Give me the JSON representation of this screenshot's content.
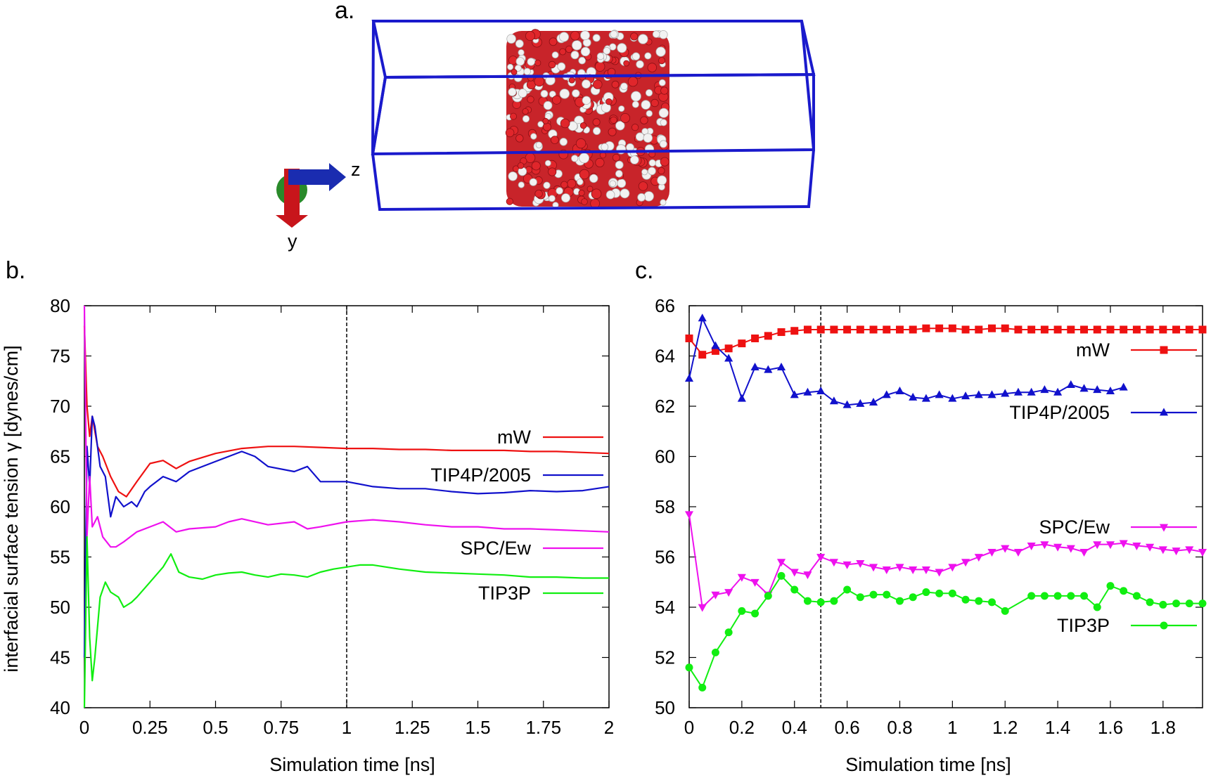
{
  "panels": {
    "a": {
      "label": "a.",
      "axis_z": "z",
      "axis_y": "y",
      "box_color": "#1a1acc"
    },
    "b": {
      "label": "b."
    },
    "c": {
      "label": "c."
    }
  },
  "chart_data": [
    {
      "id": "b",
      "type": "line",
      "xlabel": "Simulation time [ns]",
      "ylabel": "interfacial surface tension γ [dynes/cm]",
      "xlim": [
        0,
        2
      ],
      "ylim": [
        40,
        80
      ],
      "xticks": [
        0,
        0.25,
        0.5,
        0.75,
        1,
        1.25,
        1.5,
        1.75,
        2
      ],
      "xtick_labels": [
        "0",
        "0.25",
        "0.5",
        "0.75",
        "1",
        "1.25",
        "1.5",
        "1.75",
        "2"
      ],
      "yticks": [
        40,
        45,
        50,
        55,
        60,
        65,
        70,
        75,
        80
      ],
      "ytick_labels": [
        "40",
        "45",
        "50",
        "55",
        "60",
        "65",
        "70",
        "75",
        "80"
      ],
      "vline_x": 1,
      "grid": false,
      "legend": "right",
      "series": [
        {
          "name": "mW",
          "color": "#ee1111",
          "x": [
            0,
            0.01,
            0.02,
            0.03,
            0.05,
            0.07,
            0.1,
            0.13,
            0.16,
            0.2,
            0.25,
            0.3,
            0.35,
            0.4,
            0.5,
            0.6,
            0.7,
            0.8,
            0.9,
            1.0,
            1.1,
            1.2,
            1.3,
            1.4,
            1.5,
            1.6,
            1.7,
            1.8,
            1.9,
            2.0
          ],
          "y": [
            78,
            70,
            67,
            69,
            66,
            65,
            63,
            61.5,
            61,
            62.5,
            64.3,
            64.6,
            63.8,
            64.5,
            65.3,
            65.8,
            66.0,
            66.0,
            65.9,
            65.8,
            65.8,
            65.7,
            65.7,
            65.6,
            65.6,
            65.6,
            65.5,
            65.5,
            65.4,
            65.3
          ]
        },
        {
          "name": "TIP4P/2005",
          "color": "#1111cc",
          "x": [
            0,
            0.01,
            0.02,
            0.03,
            0.04,
            0.06,
            0.08,
            0.1,
            0.12,
            0.15,
            0.18,
            0.2,
            0.23,
            0.25,
            0.3,
            0.35,
            0.4,
            0.5,
            0.6,
            0.65,
            0.7,
            0.8,
            0.85,
            0.9,
            0.95,
            1.0,
            1.1,
            1.2,
            1.3,
            1.4,
            1.5,
            1.6,
            1.7,
            1.8,
            1.9,
            2.0
          ],
          "y": [
            45,
            66,
            62,
            69,
            68,
            64,
            63,
            59,
            61,
            60,
            60.5,
            60,
            61.5,
            62,
            63,
            62.5,
            63.5,
            64.5,
            65.5,
            65,
            64,
            63.5,
            64,
            62.5,
            62.5,
            62.5,
            62.0,
            61.8,
            61.8,
            61.5,
            61.3,
            61.4,
            61.6,
            61.5,
            61.6,
            62.0
          ]
        },
        {
          "name": "SPC/Ew",
          "color": "#ee11ee",
          "x": [
            0,
            0.01,
            0.02,
            0.03,
            0.05,
            0.07,
            0.1,
            0.12,
            0.15,
            0.2,
            0.25,
            0.3,
            0.35,
            0.4,
            0.5,
            0.55,
            0.6,
            0.7,
            0.8,
            0.85,
            0.9,
            1.0,
            1.1,
            1.2,
            1.3,
            1.4,
            1.5,
            1.6,
            1.7,
            1.8,
            1.9,
            2.0
          ],
          "y": [
            80,
            57,
            63,
            58,
            59,
            57,
            56,
            56,
            56.5,
            57.5,
            58,
            58.5,
            57.5,
            57.8,
            58,
            58.5,
            58.8,
            58.2,
            58.5,
            57.8,
            58,
            58.5,
            58.7,
            58.5,
            58.2,
            58.0,
            58.0,
            57.8,
            57.8,
            57.7,
            57.6,
            57.5
          ]
        },
        {
          "name": "TIP3P",
          "color": "#11ee11",
          "x": [
            0,
            0.01,
            0.02,
            0.03,
            0.04,
            0.06,
            0.08,
            0.1,
            0.13,
            0.15,
            0.18,
            0.2,
            0.25,
            0.3,
            0.33,
            0.36,
            0.4,
            0.45,
            0.5,
            0.55,
            0.6,
            0.65,
            0.7,
            0.75,
            0.8,
            0.85,
            0.9,
            0.95,
            1.0,
            1.05,
            1.1,
            1.2,
            1.3,
            1.4,
            1.5,
            1.6,
            1.7,
            1.8,
            1.9,
            2.0
          ],
          "y": [
            40,
            57,
            47,
            42.7,
            45,
            51,
            52.5,
            51.5,
            51,
            50,
            50.5,
            51,
            52.5,
            54,
            55.3,
            53.5,
            53.0,
            52.8,
            53.2,
            53.4,
            53.5,
            53.2,
            53.0,
            53.3,
            53.2,
            53.0,
            53.5,
            53.8,
            54.0,
            54.2,
            54.2,
            53.8,
            53.5,
            53.4,
            53.3,
            53.2,
            53.0,
            53.0,
            52.9,
            52.9
          ]
        }
      ]
    },
    {
      "id": "c",
      "type": "line",
      "xlabel": "Simulation time [ns]",
      "ylabel": "",
      "xlim": [
        0,
        1.95
      ],
      "ylim": [
        50,
        66
      ],
      "xticks": [
        0,
        0.2,
        0.4,
        0.6,
        0.8,
        1,
        1.2,
        1.4,
        1.6,
        1.8
      ],
      "xtick_labels": [
        "0",
        "0.2",
        "0.4",
        "0.6",
        "0.8",
        "1",
        "1.2",
        "1.4",
        "1.6",
        "1.8"
      ],
      "yticks": [
        50,
        52,
        54,
        56,
        58,
        60,
        62,
        64,
        66
      ],
      "ytick_labels": [
        "50",
        "52",
        "54",
        "56",
        "58",
        "60",
        "62",
        "64",
        "66"
      ],
      "vline_x": 0.5,
      "grid": false,
      "legend": "right",
      "series": [
        {
          "name": "mW",
          "color": "#ee1111",
          "marker": "square",
          "x": [
            0,
            0.05,
            0.1,
            0.15,
            0.2,
            0.25,
            0.3,
            0.35,
            0.4,
            0.45,
            0.5,
            0.55,
            0.6,
            0.65,
            0.7,
            0.75,
            0.8,
            0.85,
            0.9,
            0.95,
            1.0,
            1.05,
            1.1,
            1.15,
            1.2,
            1.25,
            1.3,
            1.35,
            1.4,
            1.45,
            1.5,
            1.55,
            1.6,
            1.65,
            1.7,
            1.75,
            1.8,
            1.85,
            1.9,
            1.95
          ],
          "y": [
            64.7,
            64.05,
            64.2,
            64.3,
            64.5,
            64.7,
            64.8,
            64.95,
            65.0,
            65.05,
            65.05,
            65.05,
            65.05,
            65.05,
            65.05,
            65.05,
            65.05,
            65.05,
            65.1,
            65.1,
            65.1,
            65.05,
            65.05,
            65.1,
            65.1,
            65.05,
            65.05,
            65.05,
            65.05,
            65.05,
            65.05,
            65.05,
            65.05,
            65.05,
            65.05,
            65.05,
            65.05,
            65.05,
            65.05,
            65.05
          ]
        },
        {
          "name": "TIP4P/2005",
          "color": "#1111cc",
          "marker": "triangle-up",
          "x": [
            0,
            0.05,
            0.1,
            0.15,
            0.2,
            0.25,
            0.3,
            0.35,
            0.4,
            0.45,
            0.5,
            0.55,
            0.6,
            0.65,
            0.7,
            0.75,
            0.8,
            0.85,
            0.9,
            0.95,
            1.0,
            1.05,
            1.1,
            1.15,
            1.2,
            1.25,
            1.3,
            1.35,
            1.4,
            1.45,
            1.5,
            1.55,
            1.6,
            1.65
          ],
          "y": [
            63.1,
            65.5,
            64.4,
            63.9,
            62.3,
            63.55,
            63.45,
            63.55,
            62.45,
            62.55,
            62.6,
            62.2,
            62.05,
            62.1,
            62.15,
            62.45,
            62.6,
            62.35,
            62.3,
            62.45,
            62.3,
            62.4,
            62.45,
            62.45,
            62.5,
            62.55,
            62.55,
            62.65,
            62.55,
            62.85,
            62.7,
            62.65,
            62.6,
            62.75
          ]
        },
        {
          "name": "SPC/Ew",
          "color": "#ee11ee",
          "marker": "triangle-down",
          "x": [
            0,
            0.05,
            0.1,
            0.15,
            0.2,
            0.25,
            0.3,
            0.35,
            0.4,
            0.45,
            0.5,
            0.55,
            0.6,
            0.65,
            0.7,
            0.75,
            0.8,
            0.85,
            0.9,
            0.95,
            1.0,
            1.05,
            1.1,
            1.15,
            1.2,
            1.25,
            1.3,
            1.35,
            1.4,
            1.45,
            1.5,
            1.55,
            1.6,
            1.65,
            1.7,
            1.75,
            1.8,
            1.85,
            1.9,
            1.95
          ],
          "y": [
            57.7,
            54.0,
            54.5,
            54.6,
            55.2,
            55.0,
            54.5,
            55.8,
            55.4,
            55.3,
            56.0,
            55.8,
            55.7,
            55.75,
            55.6,
            55.5,
            55.6,
            55.5,
            55.5,
            55.4,
            55.6,
            55.8,
            56.0,
            56.2,
            56.35,
            56.2,
            56.45,
            56.5,
            56.4,
            56.35,
            56.2,
            56.5,
            56.5,
            56.55,
            56.45,
            56.4,
            56.3,
            56.25,
            56.3,
            56.2
          ]
        },
        {
          "name": "TIP3P",
          "color": "#11ee11",
          "marker": "circle",
          "x": [
            0,
            0.05,
            0.1,
            0.15,
            0.2,
            0.25,
            0.3,
            0.35,
            0.4,
            0.45,
            0.5,
            0.55,
            0.6,
            0.65,
            0.7,
            0.75,
            0.8,
            0.85,
            0.9,
            0.95,
            1.0,
            1.05,
            1.1,
            1.15,
            1.2,
            1.3,
            1.35,
            1.4,
            1.45,
            1.5,
            1.55,
            1.6,
            1.65,
            1.7,
            1.75,
            1.8,
            1.85,
            1.9,
            1.95
          ],
          "y": [
            51.6,
            50.8,
            52.2,
            53.0,
            53.85,
            53.75,
            54.45,
            55.25,
            54.7,
            54.25,
            54.2,
            54.25,
            54.7,
            54.4,
            54.5,
            54.5,
            54.25,
            54.4,
            54.6,
            54.55,
            54.55,
            54.3,
            54.25,
            54.2,
            53.85,
            54.45,
            54.45,
            54.45,
            54.45,
            54.45,
            54.0,
            54.85,
            54.65,
            54.45,
            54.2,
            54.1,
            54.15,
            54.15,
            54.15
          ]
        }
      ]
    }
  ]
}
